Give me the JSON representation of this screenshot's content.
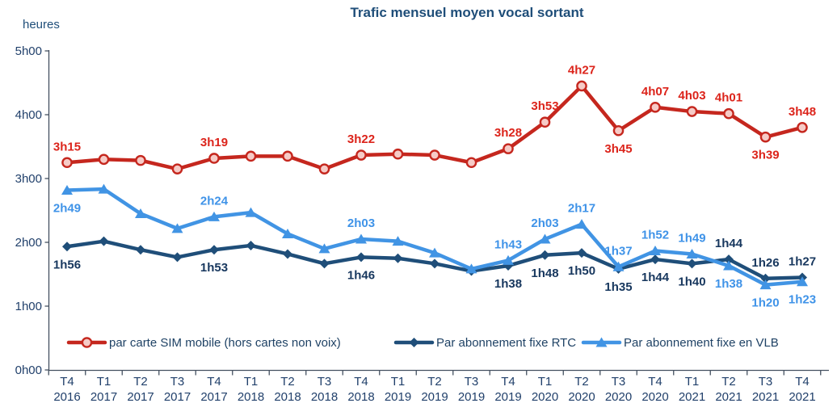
{
  "title": "Trafic mensuel moyen vocal sortant",
  "y_axis": {
    "unit_label": "heures",
    "ticks": [
      "0h00",
      "1h00",
      "2h00",
      "3h00",
      "4h00",
      "5h00"
    ]
  },
  "colors": {
    "mobile_line": "#C5271E",
    "mobile_label": "#DC241B",
    "mobile_marker_fill": "#F6CBC7",
    "rtc_line": "#1F4E79",
    "rtc_label": "#17375E",
    "vlb_line": "#4194E4",
    "vlb_label": "#3F93E8",
    "axis": "#445060",
    "text_navy": "#21406B"
  },
  "chart_data": {
    "type": "line",
    "title": "Trafic mensuel moyen vocal sortant",
    "ylabel": "heures",
    "ylim": [
      "0h00",
      "5h00"
    ],
    "grid": false,
    "legend_position": "bottom",
    "categories": [
      {
        "quarter": "T4",
        "year": "2016"
      },
      {
        "quarter": "T1",
        "year": "2017"
      },
      {
        "quarter": "T2",
        "year": "2017"
      },
      {
        "quarter": "T3",
        "year": "2017"
      },
      {
        "quarter": "T4",
        "year": "2017"
      },
      {
        "quarter": "T1",
        "year": "2018"
      },
      {
        "quarter": "T2",
        "year": "2018"
      },
      {
        "quarter": "T3",
        "year": "2018"
      },
      {
        "quarter": "T4",
        "year": "2018"
      },
      {
        "quarter": "T1",
        "year": "2019"
      },
      {
        "quarter": "T2",
        "year": "2019"
      },
      {
        "quarter": "T3",
        "year": "2019"
      },
      {
        "quarter": "T4",
        "year": "2019"
      },
      {
        "quarter": "T1",
        "year": "2020"
      },
      {
        "quarter": "T2",
        "year": "2020"
      },
      {
        "quarter": "T3",
        "year": "2020"
      },
      {
        "quarter": "T4",
        "year": "2020"
      },
      {
        "quarter": "T1",
        "year": "2021"
      },
      {
        "quarter": "T2",
        "year": "2021"
      },
      {
        "quarter": "T3",
        "year": "2021"
      },
      {
        "quarter": "T4",
        "year": "2021"
      }
    ],
    "series": [
      {
        "id": "mobile",
        "name": "par carte SIM mobile (hors cartes non voix)",
        "color": "#C5271E",
        "label_color": "#DC241B",
        "marker": "open-circle",
        "values": [
          "3h15",
          "3h18",
          "3h17",
          "3h09",
          "3h19",
          "3h21",
          "3h21",
          "3h09",
          "3h22",
          "3h23",
          "3h22",
          "3h15",
          "3h28",
          "3h53",
          "4h27",
          "3h45",
          "4h07",
          "4h03",
          "4h01",
          "3h39",
          "3h48"
        ],
        "labels": [
          {
            "i": 0,
            "pos": "above"
          },
          {
            "i": 4,
            "pos": "above"
          },
          {
            "i": 8,
            "pos": "above"
          },
          {
            "i": 12,
            "pos": "above"
          },
          {
            "i": 13,
            "pos": "above"
          },
          {
            "i": 14,
            "pos": "above"
          },
          {
            "i": 15,
            "pos": "below"
          },
          {
            "i": 16,
            "pos": "above"
          },
          {
            "i": 17,
            "pos": "above"
          },
          {
            "i": 18,
            "pos": "above"
          },
          {
            "i": 19,
            "pos": "below"
          },
          {
            "i": 20,
            "pos": "above"
          }
        ]
      },
      {
        "id": "rtc",
        "name": "Par abonnement fixe RTC",
        "color": "#1F4E79",
        "label_color": "#17375E",
        "marker": "diamond",
        "values": [
          "1h56",
          "2h01",
          "1h53",
          "1h46",
          "1h53",
          "1h57",
          "1h49",
          "1h40",
          "1h46",
          "1h45",
          "1h40",
          "1h33",
          "1h38",
          "1h48",
          "1h50",
          "1h35",
          "1h44",
          "1h40",
          "1h44",
          "1h26",
          "1h27"
        ],
        "labels": [
          {
            "i": 0,
            "pos": "below"
          },
          {
            "i": 4,
            "pos": "below"
          },
          {
            "i": 8,
            "pos": "below"
          },
          {
            "i": 12,
            "pos": "below"
          },
          {
            "i": 13,
            "pos": "below"
          },
          {
            "i": 14,
            "pos": "below"
          },
          {
            "i": 15,
            "pos": "below"
          },
          {
            "i": 16,
            "pos": "below"
          },
          {
            "i": 17,
            "pos": "below"
          },
          {
            "i": 18,
            "pos": "above"
          },
          {
            "i": 19,
            "pos": "above"
          },
          {
            "i": 20,
            "pos": "above"
          }
        ]
      },
      {
        "id": "vlb",
        "name": "Par abonnement fixe en VLB",
        "color": "#4194E4",
        "label_color": "#3F93E8",
        "marker": "triangle",
        "values": [
          "2h49",
          "2h50",
          "2h27",
          "2h13",
          "2h24",
          "2h28",
          "2h08",
          "1h54",
          "2h03",
          "2h01",
          "1h50",
          "1h35",
          "1h43",
          "2h03",
          "2h17",
          "1h37",
          "1h52",
          "1h49",
          "1h38",
          "1h20",
          "1h23"
        ],
        "labels": [
          {
            "i": 0,
            "pos": "below"
          },
          {
            "i": 4,
            "pos": "above"
          },
          {
            "i": 8,
            "pos": "above"
          },
          {
            "i": 12,
            "pos": "above"
          },
          {
            "i": 13,
            "pos": "above"
          },
          {
            "i": 14,
            "pos": "above"
          },
          {
            "i": 15,
            "pos": "above"
          },
          {
            "i": 16,
            "pos": "above"
          },
          {
            "i": 17,
            "pos": "above"
          },
          {
            "i": 18,
            "pos": "below"
          },
          {
            "i": 19,
            "pos": "below"
          },
          {
            "i": 20,
            "pos": "below"
          }
        ]
      }
    ]
  }
}
